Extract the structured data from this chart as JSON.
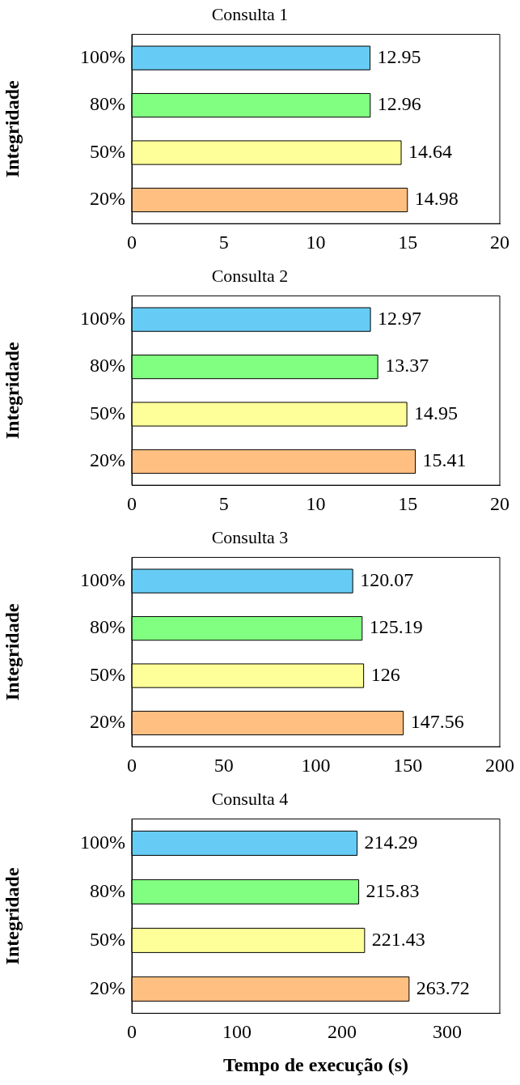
{
  "chart_data": [
    {
      "type": "bar",
      "orientation": "horizontal",
      "title": "Consulta 1",
      "ylabel": "Integridade",
      "categories": [
        "100%",
        "80%",
        "50%",
        "20%"
      ],
      "values": [
        12.95,
        12.96,
        14.64,
        14.98
      ],
      "colors": [
        "#66ccf5",
        "#80ff80",
        "#ffff99",
        "#ffbf80"
      ],
      "xlim": [
        0,
        20
      ],
      "xticks": [
        0,
        5,
        10,
        15,
        20
      ],
      "data_labels": true,
      "grid": false,
      "legend": false
    },
    {
      "type": "bar",
      "orientation": "horizontal",
      "title": "Consulta 2",
      "ylabel": "Integridade",
      "categories": [
        "100%",
        "80%",
        "50%",
        "20%"
      ],
      "values": [
        12.97,
        13.37,
        14.95,
        15.41
      ],
      "colors": [
        "#66ccf5",
        "#80ff80",
        "#ffff99",
        "#ffbf80"
      ],
      "xlim": [
        0,
        20
      ],
      "xticks": [
        0,
        5,
        10,
        15,
        20
      ],
      "data_labels": true,
      "grid": false,
      "legend": false
    },
    {
      "type": "bar",
      "orientation": "horizontal",
      "title": "Consulta 3",
      "ylabel": "Integridade",
      "categories": [
        "100%",
        "80%",
        "50%",
        "20%"
      ],
      "values": [
        120.07,
        125.19,
        126,
        147.56
      ],
      "colors": [
        "#66ccf5",
        "#80ff80",
        "#ffff99",
        "#ffbf80"
      ],
      "xlim": [
        0,
        200
      ],
      "xticks": [
        0,
        50,
        100,
        150,
        200
      ],
      "data_labels": true,
      "grid": false,
      "legend": false
    },
    {
      "type": "bar",
      "orientation": "horizontal",
      "title": "Consulta 4",
      "ylabel": "Integridade",
      "xlabel": "Tempo de execução (s)",
      "categories": [
        "100%",
        "80%",
        "50%",
        "20%"
      ],
      "values": [
        214.29,
        215.83,
        221.43,
        263.72
      ],
      "colors": [
        "#66ccf5",
        "#80ff80",
        "#ffff99",
        "#ffbf80"
      ],
      "xlim": [
        0,
        350
      ],
      "xticks": [
        0,
        100,
        200,
        300
      ],
      "data_labels": true,
      "grid": false,
      "legend": false
    }
  ]
}
